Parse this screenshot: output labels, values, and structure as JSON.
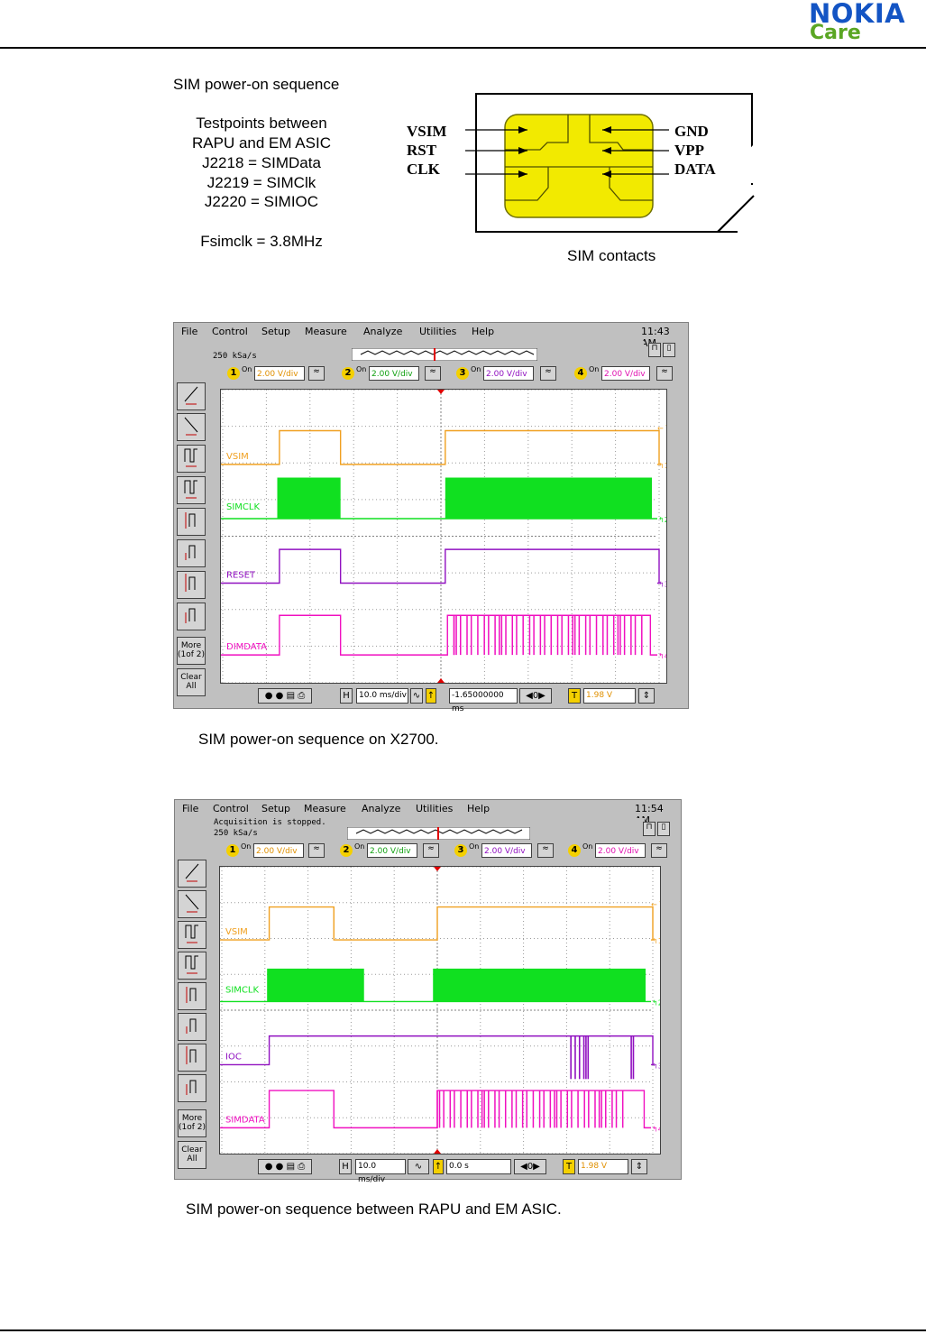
{
  "header": {
    "brand": "NOKIA",
    "sub_brand": "Care"
  },
  "intro": {
    "title": "SIM power-on sequence",
    "lines": [
      "Testpoints between",
      "RAPU and EM ASIC",
      "J2218 = SIMData",
      "J2219 = SIMClk",
      "J2220 = SIMIOC"
    ],
    "freq": "Fsimclk = 3.8MHz"
  },
  "sim_diagram": {
    "left_pins": [
      "VSIM",
      "RST",
      "CLK"
    ],
    "right_pins": [
      "GND",
      "VPP",
      "DATA"
    ],
    "caption": "SIM contacts"
  },
  "scope1": {
    "menu": [
      "File",
      "Control",
      "Setup",
      "Measure",
      "Analyze",
      "Utilities",
      "Help"
    ],
    "time": "11:43 AM",
    "status": "",
    "rate": "250 kSa/s",
    "channels": [
      "2.00 V/div",
      "2.00 V/div",
      "2.00 V/div",
      "2.00 V/div"
    ],
    "on_label": "On",
    "trace_labels": [
      "VSIM",
      "SIMCLK",
      "RESET",
      "DIMDATA"
    ],
    "timebase": "10.0 ms/div",
    "delay": "-1.65000000 ms",
    "trigger": "1.98 V",
    "more": "More (1of 2)",
    "clear": "Clear All",
    "caption": "SIM power-on sequence on X2700."
  },
  "scope2": {
    "menu": [
      "File",
      "Control",
      "Setup",
      "Measure",
      "Analyze",
      "Utilities",
      "Help"
    ],
    "time": "11:54 AM",
    "status": "Acquisition is stopped.",
    "rate": "250 kSa/s",
    "channels": [
      "2.00 V/div",
      "2.00 V/div",
      "2.00 V/div",
      "2.00 V/div"
    ],
    "on_label": "On",
    "trace_labels": [
      "VSIM",
      "SIMCLK",
      "IOC",
      "SIMDATA"
    ],
    "timebase": "10.0 ms/div",
    "delay": "0.0 s",
    "trigger": "1.98 V",
    "more": "More (1of 2)",
    "clear": "Clear All",
    "caption": "SIM power-on sequence between RAPU and EM ASIC."
  },
  "colors": {
    "vsim": "#f0a020",
    "clk": "#10e020",
    "reset": "#9010c0",
    "data": "#f010c0",
    "brand": "#1354c4",
    "care": "#5aa623"
  }
}
